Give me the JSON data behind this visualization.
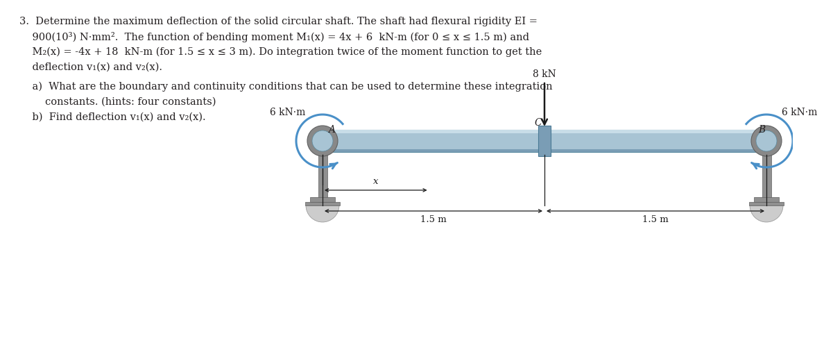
{
  "bg_color": "#ffffff",
  "text_color": "#231f20",
  "shaft_color_main": "#a8c4d4",
  "shaft_highlight": "#c8dde8",
  "shaft_shadow": "#7a9db5",
  "shaft_edge": "#5a8aa0",
  "support_mid": "#909090",
  "support_dark": "#606060",
  "support_light": "#bbbbbb",
  "foot_color": "#cccccc",
  "arrow_color": "#4a90c8",
  "force_color": "#1a1a1a",
  "dim_color": "#1a1a1a",
  "connector_color": "#7a9db5",
  "connector_edge": "#4a7a95",
  "text_lines": [
    "3.  Determine the maximum deflection of the solid circular shaft. The shaft had flexural rigidity EI =",
    "    900(10³) N·mm².  The function of bending moment M₁(x) = 4x + 6  kN-m (for 0 ≤ x ≤ 1.5 m) and",
    "    M₂(x) = -4x + 18  kN-m (for 1.5 ≤ x ≤ 3 m). Do integration twice of the moment function to get the",
    "    deflection v₁(x) and v₂(x).",
    "    a)  What are the boundary and continuity conditions that can be used to determine these integration",
    "        constants. (hints: four constants)",
    "    b)  Find deflection v₁(x) and v₂(x)."
  ],
  "label_A": "A",
  "label_B": "B",
  "label_C": "C",
  "label_x": "x",
  "label_15m_1": "1.5 m",
  "label_15m_2": "1.5 m",
  "label_8kN": "8 kN",
  "label_6kNm_left": "6 kN·m",
  "label_6kNm_right": "6 kN·m",
  "font_size_text": 10.5,
  "font_size_label": 10,
  "font_size_dim": 9.5
}
